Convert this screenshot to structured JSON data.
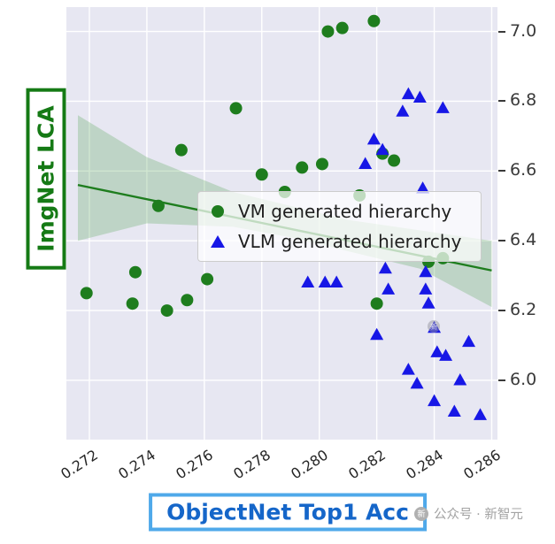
{
  "figure": {
    "background": "#ffffff"
  },
  "plot": {
    "background": "#e7e7f2",
    "grid_color": "#ffffff"
  },
  "ylabel": {
    "text": "ImgNet LCA",
    "color": "#157a15"
  },
  "xlabel": {
    "text": "ObjectNet Top1 Acc",
    "text_color": "#1566c9",
    "border_color": "#4fa9ea"
  },
  "legend": {
    "items": [
      {
        "label": "VM generated hierarchy",
        "marker": "circle",
        "color": "#1e7d1e"
      },
      {
        "label": "VLM generated hierarchy",
        "marker": "triangle",
        "color": "#1717e6"
      }
    ]
  },
  "watermark": {
    "logo_glyph": "新",
    "text": "公众号 · 新智元"
  },
  "chart_data": {
    "type": "scatter",
    "title": "",
    "xlabel": "ObjectNet Top1 Acc",
    "ylabel": "ImgNet LCA",
    "xlim": [
      0.2712,
      0.2862
    ],
    "ylim": [
      5.83,
      7.07
    ],
    "grid": true,
    "legend_position": "center",
    "x_ticks": [
      0.272,
      0.274,
      0.276,
      0.278,
      0.28,
      0.282,
      0.284,
      0.286
    ],
    "x_tick_labels": [
      "0.272",
      "0.274",
      "0.276",
      "0.278",
      "0.280",
      "0.282",
      "0.284",
      "0.286"
    ],
    "y_ticks": [
      7.0,
      6.8,
      6.6,
      6.4,
      6.2,
      6.0
    ],
    "y_tick_labels": [
      "7.0",
      "6.8",
      "6.6",
      "6.4",
      "6.2",
      "6.0"
    ],
    "series": [
      {
        "name": "VM generated hierarchy",
        "marker": "circle",
        "color": "#1e7d1e",
        "points": [
          [
            0.2803,
            7.0
          ],
          [
            0.2808,
            7.01
          ],
          [
            0.2819,
            7.03
          ],
          [
            0.2771,
            6.78
          ],
          [
            0.2752,
            6.66
          ],
          [
            0.2822,
            6.65
          ],
          [
            0.2826,
            6.63
          ],
          [
            0.278,
            6.59
          ],
          [
            0.2794,
            6.61
          ],
          [
            0.2801,
            6.62
          ],
          [
            0.2788,
            6.54
          ],
          [
            0.2814,
            6.53
          ],
          [
            0.2744,
            6.5
          ],
          [
            0.2719,
            6.25
          ],
          [
            0.2735,
            6.22
          ],
          [
            0.2736,
            6.31
          ],
          [
            0.2747,
            6.2
          ],
          [
            0.2754,
            6.23
          ],
          [
            0.2761,
            6.29
          ],
          [
            0.282,
            6.22
          ],
          [
            0.2838,
            6.34
          ],
          [
            0.2843,
            6.35
          ]
        ]
      },
      {
        "name": "VLM generated hierarchy",
        "marker": "triangle",
        "color": "#1717e6",
        "points": [
          [
            0.2831,
            6.82
          ],
          [
            0.2835,
            6.81
          ],
          [
            0.2829,
            6.77
          ],
          [
            0.2843,
            6.78
          ],
          [
            0.2819,
            6.69
          ],
          [
            0.2822,
            6.66
          ],
          [
            0.2816,
            6.62
          ],
          [
            0.2836,
            6.55
          ],
          [
            0.2796,
            6.28
          ],
          [
            0.2802,
            6.28
          ],
          [
            0.2806,
            6.28
          ],
          [
            0.2823,
            6.32
          ],
          [
            0.2824,
            6.26
          ],
          [
            0.2837,
            6.31
          ],
          [
            0.2837,
            6.26
          ],
          [
            0.2838,
            6.22
          ],
          [
            0.284,
            6.15
          ],
          [
            0.282,
            6.13
          ],
          [
            0.2841,
            6.08
          ],
          [
            0.2844,
            6.07
          ],
          [
            0.2852,
            6.11
          ],
          [
            0.2831,
            6.03
          ],
          [
            0.2834,
            5.99
          ],
          [
            0.2849,
            6.0
          ],
          [
            0.284,
            5.94
          ],
          [
            0.2847,
            5.91
          ],
          [
            0.2856,
            5.9
          ]
        ]
      }
    ],
    "regression": {
      "color": "#1e7d1e",
      "band_fill": "#57a757",
      "band_opacity": 0.28,
      "line": [
        [
          0.2716,
          6.56
        ],
        [
          0.286,
          6.315
        ]
      ],
      "band_top": [
        [
          0.2716,
          6.76
        ],
        [
          0.274,
          6.64
        ],
        [
          0.277,
          6.54
        ],
        [
          0.279,
          6.5
        ],
        [
          0.281,
          6.46
        ],
        [
          0.2835,
          6.43
        ],
        [
          0.286,
          6.4
        ]
      ],
      "band_bottom": [
        [
          0.2716,
          6.4
        ],
        [
          0.274,
          6.45
        ],
        [
          0.277,
          6.44
        ],
        [
          0.279,
          6.41
        ],
        [
          0.281,
          6.37
        ],
        [
          0.2835,
          6.32
        ],
        [
          0.286,
          6.21
        ]
      ]
    }
  }
}
